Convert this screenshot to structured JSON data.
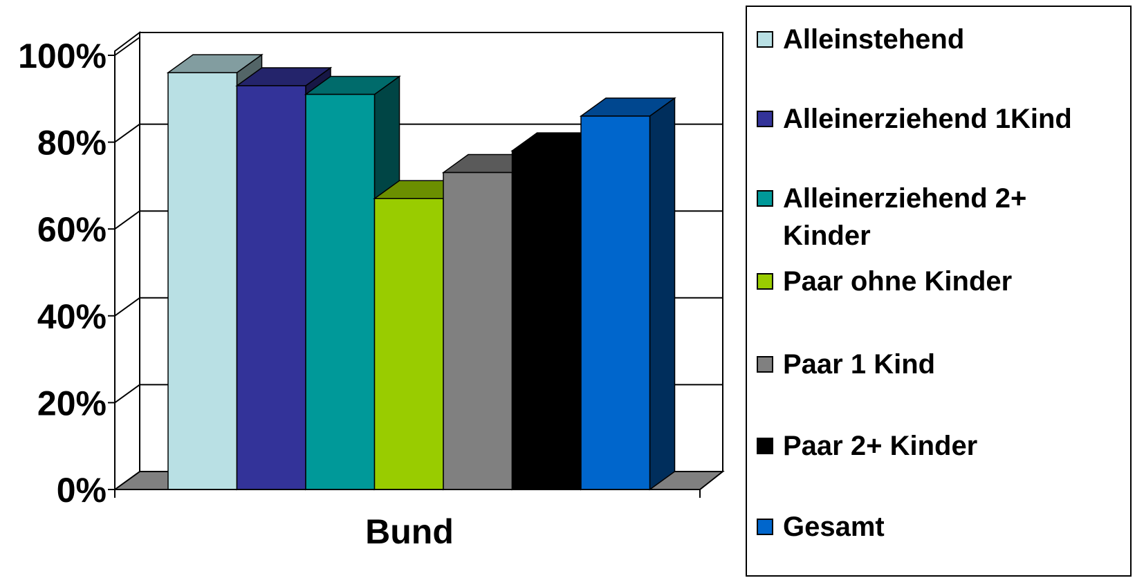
{
  "chart_data": {
    "type": "bar",
    "categories": [
      "Bund"
    ],
    "ylim": [
      0,
      100
    ],
    "y_ticks": [
      "0%",
      "20%",
      "40%",
      "60%",
      "80%",
      "100%"
    ],
    "y_tick_values": [
      0,
      20,
      40,
      60,
      80,
      100
    ],
    "grid": true,
    "legend_position": "right",
    "style": "3d-clustered-column",
    "series": [
      {
        "name": "Alleinstehend",
        "values": [
          96
        ],
        "color": "#b9e0e4"
      },
      {
        "name": "Alleinerziehend 1Kind",
        "values": [
          93
        ],
        "color": "#333399"
      },
      {
        "name": "Alleinerziehend 2+ Kinder",
        "values": [
          91
        ],
        "color": "#009999"
      },
      {
        "name": "Paar ohne Kinder",
        "values": [
          67
        ],
        "color": "#99cc00"
      },
      {
        "name": "Paar 1 Kind",
        "values": [
          73
        ],
        "color": "#808080"
      },
      {
        "name": "Paar 2+ Kinder",
        "values": [
          78
        ],
        "color": "#000000"
      },
      {
        "name": "Gesamt",
        "values": [
          86
        ],
        "color": "#0066cc"
      }
    ]
  }
}
